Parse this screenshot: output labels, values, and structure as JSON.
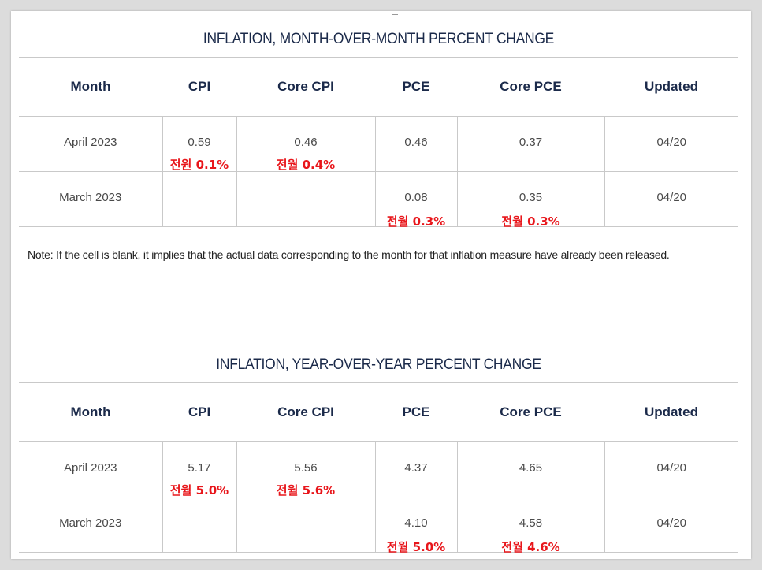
{
  "mom": {
    "title": "INFLATION, MONTH-OVER-MONTH PERCENT CHANGE",
    "headers": [
      "Month",
      "CPI",
      "Core CPI",
      "PCE",
      "Core PCE",
      "Updated"
    ],
    "rows": [
      {
        "month": "April 2023",
        "cpi": "0.59",
        "core_cpi": "0.46",
        "pce": "0.46",
        "core_pce": "0.37",
        "updated": "04/20",
        "cpi_note": "전원 0.1%",
        "core_cpi_note": "전월 0.4%"
      },
      {
        "month": "March 2023",
        "cpi": "",
        "core_cpi": "",
        "pce": "0.08",
        "core_pce": "0.35",
        "updated": "04/20",
        "pce_note": "전월 0.3%",
        "core_pce_note": "전월 0.3%"
      }
    ]
  },
  "note": "Note: If the cell is blank, it implies that the actual data corresponding to the month for that inflation measure have already been released.",
  "yoy": {
    "title": "INFLATION, YEAR-OVER-YEAR PERCENT CHANGE",
    "headers": [
      "Month",
      "CPI",
      "Core CPI",
      "PCE",
      "Core PCE",
      "Updated"
    ],
    "rows": [
      {
        "month": "April 2023",
        "cpi": "5.17",
        "core_cpi": "5.56",
        "pce": "4.37",
        "core_pce": "4.65",
        "updated": "04/20",
        "cpi_note": "전월 5.0%",
        "core_cpi_note": "전월 5.6%"
      },
      {
        "month": "March 2023",
        "cpi": "",
        "core_cpi": "",
        "pce": "4.10",
        "core_pce": "4.58",
        "updated": "04/20",
        "pce_note": "전월 5.0%",
        "core_pce_note": "전월 4.6%"
      }
    ]
  },
  "colors": {
    "title": "#1b2a4a",
    "annotation": "#e8161b",
    "border": "#c9c9c9"
  }
}
